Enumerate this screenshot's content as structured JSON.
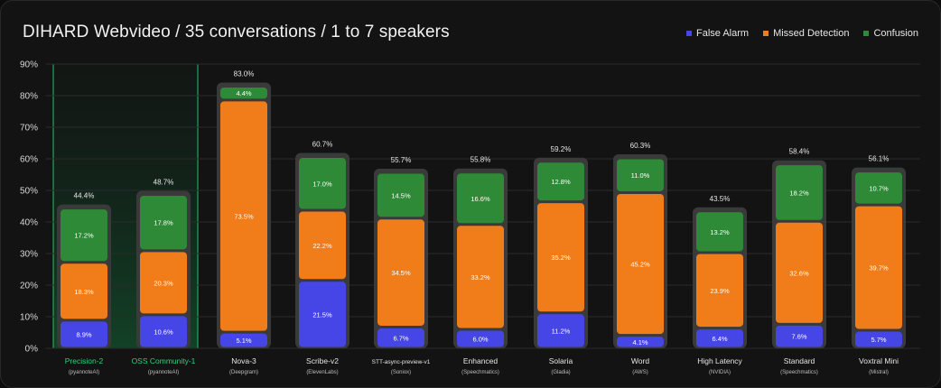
{
  "title": "DIHARD Webvideo / 35 conversations / 1 to 7 speakers",
  "legend": [
    {
      "label": "False Alarm",
      "color": "#4646e6"
    },
    {
      "label": "Missed Detection",
      "color": "#f07c1a"
    },
    {
      "label": "Confusion",
      "color": "#2f8a37"
    }
  ],
  "chart_data": {
    "type": "bar",
    "stacked": true,
    "title": "DIHARD Webvideo / 35 conversations / 1 to 7 speakers",
    "ylim": [
      0,
      90
    ],
    "yticks": [
      "0%",
      "10%",
      "20%",
      "30%",
      "40%",
      "50%",
      "60%",
      "70%",
      "80%",
      "90%"
    ],
    "grid": true,
    "legend_position": "top-right",
    "categories": [
      {
        "name": "Precision-2",
        "provider": "(pyannoteAI)",
        "highlight": true
      },
      {
        "name": "OSS Community-1",
        "provider": "(pyannoteAI)",
        "highlight": true
      },
      {
        "name": "Nova-3",
        "provider": "(Deepgram)",
        "highlight": false
      },
      {
        "name": "Scribe-v2",
        "provider": "(ElevenLabs)",
        "highlight": false
      },
      {
        "name": "STT-async-preview-v1",
        "provider": "(Soniox)",
        "highlight": false
      },
      {
        "name": "Enhanced",
        "provider": "(Speechmatics)",
        "highlight": false
      },
      {
        "name": "Solaria",
        "provider": "(Gladia)",
        "highlight": false
      },
      {
        "name": "Word",
        "provider": "(AWS)",
        "highlight": false
      },
      {
        "name": "High Latency",
        "provider": "(NVIDIA)",
        "highlight": false
      },
      {
        "name": "Standard",
        "provider": "(Speechmatics)",
        "highlight": false
      },
      {
        "name": "Voxtral Mini",
        "provider": "(Mistral)",
        "highlight": false
      }
    ],
    "totals": [
      "44.4%",
      "48.7%",
      "83.0%",
      "60.7%",
      "55.7%",
      "55.8%",
      "59.2%",
      "60.3%",
      "43.5%",
      "58.4%",
      "56.1%"
    ],
    "series": [
      {
        "name": "False Alarm",
        "color": "#4646e6",
        "values": [
          8.9,
          10.6,
          5.1,
          21.5,
          6.7,
          6.0,
          11.2,
          4.1,
          6.4,
          7.6,
          5.7
        ],
        "labels": [
          "8.9%",
          "10.6%",
          "5.1%",
          "21.5%",
          "6.7%",
          "6.0%",
          "11.2%",
          "4.1%",
          "6.4%",
          "7.6%",
          "5.7%"
        ]
      },
      {
        "name": "Missed Detection",
        "color": "#f07c1a",
        "values": [
          18.3,
          20.3,
          73.5,
          22.2,
          34.5,
          33.2,
          35.2,
          45.2,
          23.9,
          32.6,
          39.7
        ],
        "labels": [
          "18.3%",
          "20.3%",
          "73.5%",
          "22.2%",
          "34.5%",
          "33.2%",
          "35.2%",
          "45.2%",
          "23.9%",
          "32.6%",
          "39.7%"
        ]
      },
      {
        "name": "Confusion",
        "color": "#2f8a37",
        "values": [
          17.2,
          17.8,
          4.4,
          17.0,
          14.5,
          16.6,
          12.8,
          11.0,
          13.2,
          18.2,
          10.7
        ],
        "labels": [
          "17.2%",
          "17.8%",
          "4.4%",
          "17.0%",
          "14.5%",
          "16.6%",
          "12.8%",
          "11.0%",
          "13.2%",
          "18.2%",
          "10.7%"
        ]
      }
    ]
  }
}
